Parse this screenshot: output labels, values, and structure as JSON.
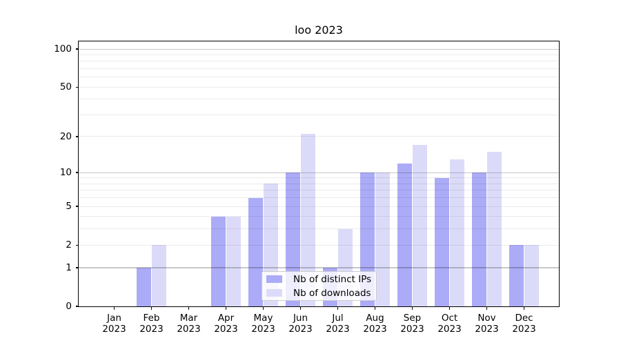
{
  "title": "loo 2023",
  "colors": {
    "ips_bar": "#ababf7",
    "downloads_bar": "#dbdbf9",
    "grid_major": "rgba(0,0,0,0.22)",
    "grid_minor": "rgba(0,0,0,0.078)",
    "axis": "#000000",
    "legend_border": "#cccccc"
  },
  "legend": {
    "items": [
      {
        "label": "Nb of distinct IPs",
        "color_key": "ips_bar"
      },
      {
        "label": "Nb of downloads",
        "color_key": "downloads_bar"
      }
    ]
  },
  "y_axis": {
    "labeled_ticks": [
      0,
      1,
      2,
      5,
      10,
      20,
      50,
      100
    ],
    "major_grid": [
      1,
      10,
      100
    ],
    "minor_grid": [
      2,
      3,
      4,
      5,
      6,
      7,
      8,
      9,
      20,
      30,
      40,
      50,
      60,
      70,
      80,
      90
    ],
    "scale": "log1p",
    "range": [
      0,
      100
    ]
  },
  "chart_data": {
    "type": "bar",
    "title": "loo 2023",
    "categories": [
      "Jan 2023",
      "Feb 2023",
      "Mar 2023",
      "Apr 2023",
      "May 2023",
      "Jun 2023",
      "Jul 2023",
      "Aug 2023",
      "Sep 2023",
      "Oct 2023",
      "Nov 2023",
      "Dec 2023"
    ],
    "series": [
      {
        "name": "Nb of distinct IPs",
        "color_key": "ips_bar",
        "values": [
          0,
          1,
          0,
          4,
          6,
          10,
          1,
          10,
          12,
          9,
          10,
          2
        ]
      },
      {
        "name": "Nb of downloads",
        "color_key": "downloads_bar",
        "values": [
          0,
          2,
          0,
          4,
          8,
          21,
          3,
          10,
          17,
          13,
          15,
          2
        ]
      }
    ],
    "xlabel": "",
    "ylabel": "",
    "y_ticks": [
      0,
      1,
      2,
      5,
      10,
      20,
      50,
      100
    ],
    "y_scale": "log1p",
    "ylim": [
      0,
      100
    ],
    "grid": "horizontal major+minor, drawn over bars",
    "legend_position": "inside-bottom-center"
  }
}
